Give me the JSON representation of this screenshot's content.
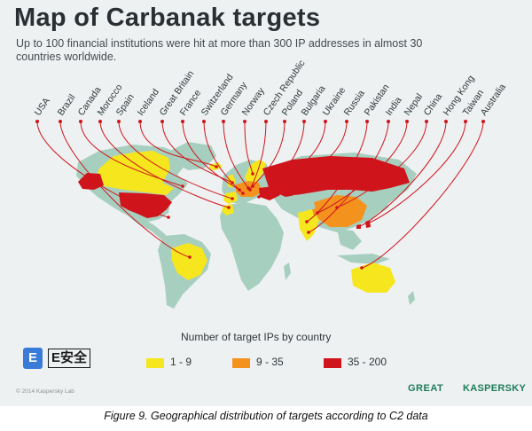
{
  "header": {
    "title": "Map of Carbanak targets",
    "subtitle": "Up to 100 financial institutions were hit at more than 300 IP addresses in almost 30 countries worldwide."
  },
  "countries": [
    "USA",
    "Brazil",
    "Canada",
    "Morocco",
    "Spain",
    "Iceland",
    "Great Britain",
    "France",
    "Switzerland",
    "Germany",
    "Norway",
    "Czech Republic",
    "Poland",
    "Bulgaria",
    "Ukraine",
    "Russia",
    "Pakistan",
    "India",
    "Nepal",
    "China",
    "Hong Kong",
    "Taiwan",
    "Australia"
  ],
  "legend": {
    "title": "Number of target IPs by country",
    "items": [
      {
        "label": "1 - 9",
        "color": "#f5e61e"
      },
      {
        "label": "9 - 35",
        "color": "#f4921e"
      },
      {
        "label": "35 - 200",
        "color": "#d0141b"
      }
    ]
  },
  "colors": {
    "land": "#a7cfbf",
    "line": "#d0141b",
    "background": "#eef1f2",
    "brand": "#1d7c5a"
  },
  "footer": {
    "copyright": "© 2014 Kaspersky Lab",
    "logo_great": "GREAT",
    "logo_kaspersky": "KASPERSKY",
    "watermark_icon": "E",
    "watermark_text": "E安全"
  },
  "caption": "Figure 9. Geographical distribution of targets according to C2 data"
}
